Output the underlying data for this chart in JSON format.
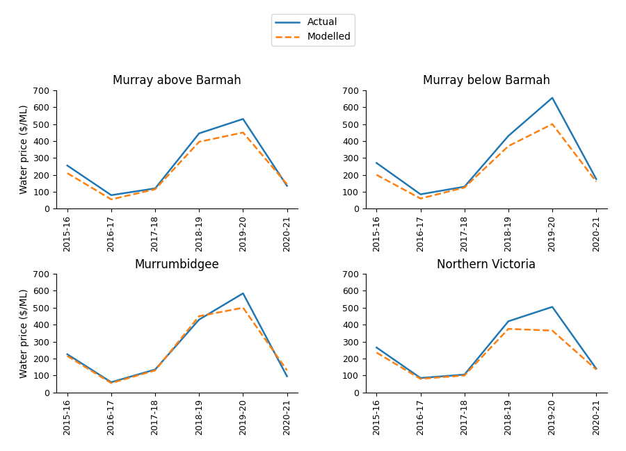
{
  "years": [
    "2015-16",
    "2016-17",
    "2017-18",
    "2018-19",
    "2019-20",
    "2020-21"
  ],
  "panels": [
    {
      "title": "Murray above Barmah",
      "actual": [
        255,
        80,
        120,
        445,
        530,
        135
      ],
      "modelled": [
        210,
        55,
        115,
        395,
        450,
        145
      ]
    },
    {
      "title": "Murray below Barmah",
      "actual": [
        270,
        85,
        130,
        430,
        655,
        175
      ],
      "modelled": [
        200,
        60,
        125,
        370,
        500,
        160
      ]
    },
    {
      "title": "Murrumbidgee",
      "actual": [
        225,
        60,
        135,
        430,
        585,
        95
      ],
      "modelled": [
        215,
        55,
        130,
        450,
        500,
        130
      ]
    },
    {
      "title": "Northern Victoria",
      "actual": [
        265,
        85,
        105,
        420,
        505,
        140
      ],
      "modelled": [
        235,
        80,
        100,
        375,
        365,
        135
      ]
    }
  ],
  "actual_color": "#1f77b4",
  "modelled_color": "#ff7f0e",
  "ylabel": "Water price ($/ML)",
  "ylim": [
    0,
    700
  ],
  "yticks": [
    0,
    100,
    200,
    300,
    400,
    500,
    600,
    700
  ],
  "actual_label": "Actual",
  "modelled_label": "Modelled",
  "actual_linewidth": 1.8,
  "modelled_linewidth": 1.8,
  "legend_ncol": 1,
  "xtick_rotation": 90
}
